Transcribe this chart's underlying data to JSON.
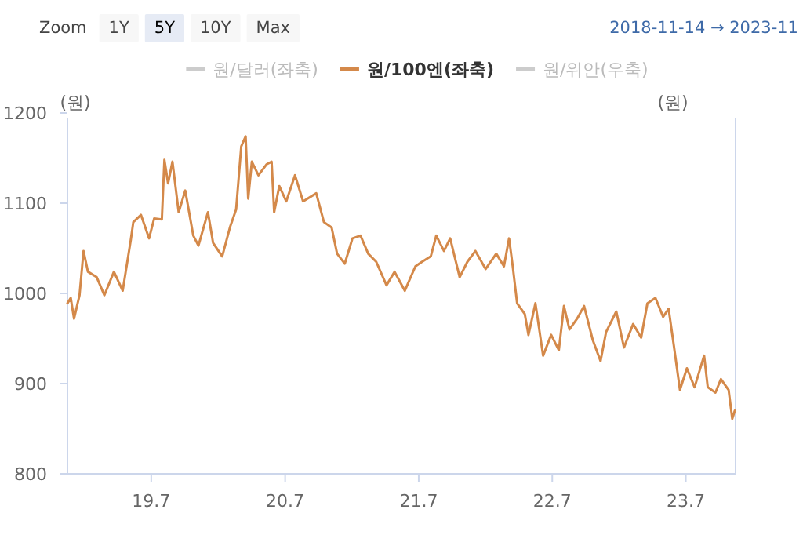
{
  "chart_data": {
    "type": "line",
    "ylabel": "(원)",
    "y2label": "(원)",
    "legend": "top",
    "annotations": [
      "Zoom",
      "1Y",
      "5Y",
      "10Y",
      "Max",
      "2018-11-14 → 2023-11"
    ],
    "xlim": [
      "2018-11-14",
      "2023-11-14"
    ],
    "xticks": [
      {
        "value": "2019-07-01",
        "label": "19.7"
      },
      {
        "value": "2020-07-01",
        "label": "20.7"
      },
      {
        "value": "2021-07-01",
        "label": "21.7"
      },
      {
        "value": "2022-07-01",
        "label": "22.7"
      },
      {
        "value": "2023-07-01",
        "label": "23.7"
      }
    ],
    "ylim": [
      800,
      1200
    ],
    "yticks": [
      800,
      900,
      1000,
      1100,
      1200
    ],
    "series": [
      {
        "name": "원/달러(좌축)",
        "color": "#cccccc"
      },
      {
        "name": "원/100엔(좌축)",
        "color": "#d4894a",
        "x": [
          "2018-11-14",
          "2018-11-23",
          "2018-12-02",
          "2018-12-17",
          "2018-12-28",
          "2019-01-09",
          "2019-02-02",
          "2019-02-23",
          "2019-03-21",
          "2019-04-14",
          "2019-05-06",
          "2019-05-13",
          "2019-06-03",
          "2019-06-25",
          "2019-07-09",
          "2019-07-30",
          "2019-08-06",
          "2019-08-16",
          "2019-08-28",
          "2019-09-14",
          "2019-10-02",
          "2019-10-24",
          "2019-11-07",
          "2019-12-03",
          "2019-12-17",
          "2020-01-11",
          "2020-02-01",
          "2020-02-18",
          "2020-03-03",
          "2020-03-15",
          "2020-03-22",
          "2020-04-01",
          "2020-04-19",
          "2020-05-11",
          "2020-05-25",
          "2020-06-01",
          "2020-06-15",
          "2020-07-04",
          "2020-07-28",
          "2020-08-19",
          "2020-09-24",
          "2020-10-15",
          "2020-11-05",
          "2020-11-20",
          "2020-12-11",
          "2021-01-01",
          "2021-01-23",
          "2021-02-13",
          "2021-03-07",
          "2021-04-04",
          "2021-04-26",
          "2021-05-24",
          "2021-06-22",
          "2021-07-10",
          "2021-08-03",
          "2021-08-18",
          "2021-09-08",
          "2021-09-25",
          "2021-10-21",
          "2021-11-11",
          "2021-12-03",
          "2021-12-31",
          "2022-01-29",
          "2022-02-19",
          "2022-03-05",
          "2022-03-15",
          "2022-03-27",
          "2022-04-17",
          "2022-04-27",
          "2022-05-16",
          "2022-06-06",
          "2022-06-28",
          "2022-07-19",
          "2022-08-02",
          "2022-08-17",
          "2022-09-07",
          "2022-09-26",
          "2022-10-20",
          "2022-11-10",
          "2022-11-25",
          "2022-12-23",
          "2023-01-13",
          "2023-02-07",
          "2023-03-01",
          "2023-03-18",
          "2023-04-09",
          "2023-04-30",
          "2023-05-15",
          "2023-05-29",
          "2023-06-15",
          "2023-07-04",
          "2023-07-25",
          "2023-08-20",
          "2023-08-30",
          "2023-09-20",
          "2023-10-05",
          "2023-10-26",
          "2023-11-05",
          "2023-11-12"
        ],
        "values": [
          989,
          995,
          972,
          998,
          1047,
          1024,
          1018,
          998,
          1024,
          1003,
          1059,
          1079,
          1087,
          1061,
          1083,
          1082,
          1148,
          1122,
          1146,
          1090,
          1114,
          1064,
          1053,
          1090,
          1056,
          1041,
          1073,
          1093,
          1163,
          1174,
          1105,
          1146,
          1131,
          1143,
          1146,
          1090,
          1119,
          1102,
          1131,
          1102,
          1111,
          1079,
          1073,
          1044,
          1033,
          1061,
          1064,
          1044,
          1035,
          1009,
          1024,
          1003,
          1030,
          1035,
          1041,
          1064,
          1047,
          1061,
          1018,
          1035,
          1047,
          1027,
          1044,
          1030,
          1061,
          1030,
          989,
          977,
          954,
          989,
          931,
          954,
          937,
          986,
          960,
          972,
          986,
          948,
          925,
          957,
          980,
          940,
          966,
          951,
          989,
          995,
          974,
          983,
          943,
          893,
          917,
          896,
          931,
          896,
          890,
          905,
          893,
          861,
          870
        ]
      },
      {
        "name": "원/위안(우축)",
        "color": "#cccccc"
      }
    ]
  }
}
